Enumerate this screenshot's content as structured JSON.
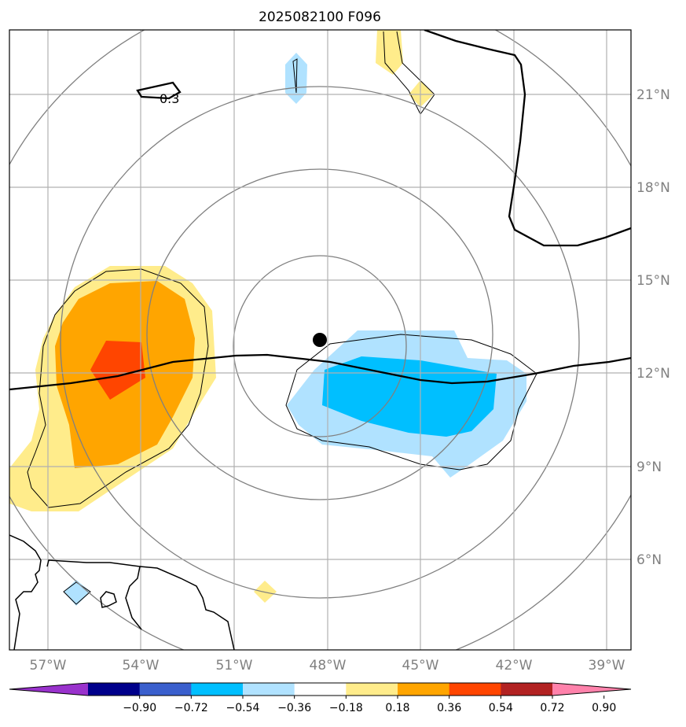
{
  "title": "2025082100 F096",
  "map": {
    "lon_labels": [
      "57°W",
      "54°W",
      "51°W",
      "48°W",
      "45°W",
      "42°W",
      "39°W"
    ],
    "lat_labels": [
      "21°N",
      "18°N",
      "15°N",
      "12°N",
      "9°N",
      "6°N"
    ],
    "contour_label": "0.3",
    "center_marker": "storm-center"
  },
  "colorbar": {
    "ticks": [
      "−0.90",
      "−0.72",
      "−0.54",
      "−0.36",
      "−0.18",
      "0.18",
      "0.36",
      "0.54",
      "0.72",
      "0.90"
    ],
    "colors": [
      "#9932cc",
      "#00008b",
      "#3a5fcd",
      "#00bfff",
      "#b0e2ff",
      "#ffffff",
      "#ffec8b",
      "#ffa500",
      "#ff4500",
      "#b22222",
      "#ff82ab"
    ]
  },
  "colors": {
    "light_yellow": "#ffec8b",
    "orange": "#ffa500",
    "red_orange": "#ff4500",
    "light_blue": "#b0e2ff",
    "deep_sky_blue": "#00bfff",
    "grid": "#a9a9a9",
    "range_rings": "#808080"
  }
}
